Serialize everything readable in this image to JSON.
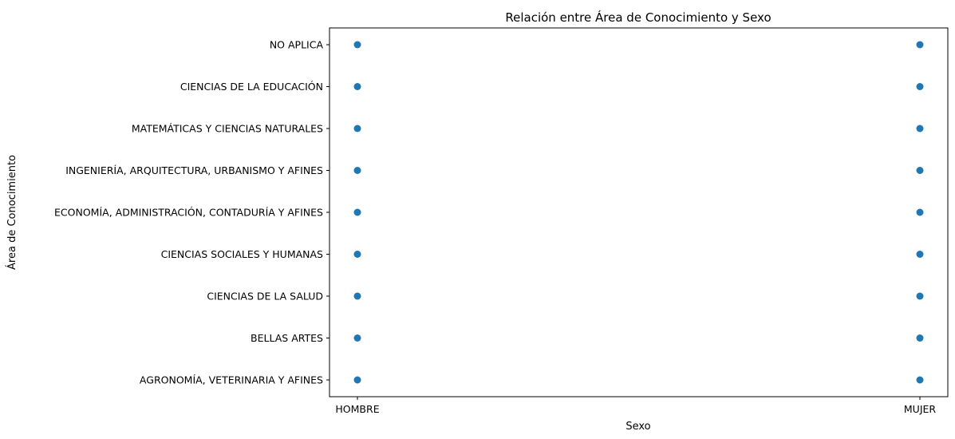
{
  "chart_data": {
    "type": "scatter",
    "title": "Relación entre Área de Conocimiento y Sexo",
    "xlabel": "Sexo",
    "ylabel": "Área de Conocimiento",
    "x_categories": [
      "HOMBRE",
      "MUJER"
    ],
    "y_categories": [
      "AGRONOMÍA, VETERINARIA Y AFINES",
      "BELLAS ARTES",
      "CIENCIAS DE LA SALUD",
      "CIENCIAS SOCIALES Y HUMANAS",
      "ECONOMÍA, ADMINISTRACIÓN, CONTADURÍA Y AFINES",
      "INGENIERÍA, ARQUITECTURA, URBANISMO Y AFINES",
      "MATEMÁTICAS Y CIENCIAS NATURALES",
      "CIENCIAS DE LA EDUCACIÓN",
      "NO APLICA"
    ],
    "points": [
      {
        "x": "HOMBRE",
        "y": "AGRONOMÍA, VETERINARIA Y AFINES"
      },
      {
        "x": "HOMBRE",
        "y": "BELLAS ARTES"
      },
      {
        "x": "HOMBRE",
        "y": "CIENCIAS DE LA SALUD"
      },
      {
        "x": "HOMBRE",
        "y": "CIENCIAS SOCIALES Y HUMANAS"
      },
      {
        "x": "HOMBRE",
        "y": "ECONOMÍA, ADMINISTRACIÓN, CONTADURÍA Y AFINES"
      },
      {
        "x": "HOMBRE",
        "y": "INGENIERÍA, ARQUITECTURA, URBANISMO Y AFINES"
      },
      {
        "x": "HOMBRE",
        "y": "MATEMÁTICAS Y CIENCIAS NATURALES"
      },
      {
        "x": "HOMBRE",
        "y": "CIENCIAS DE LA EDUCACIÓN"
      },
      {
        "x": "HOMBRE",
        "y": "NO APLICA"
      },
      {
        "x": "MUJER",
        "y": "AGRONOMÍA, VETERINARIA Y AFINES"
      },
      {
        "x": "MUJER",
        "y": "BELLAS ARTES"
      },
      {
        "x": "MUJER",
        "y": "CIENCIAS DE LA SALUD"
      },
      {
        "x": "MUJER",
        "y": "CIENCIAS SOCIALES Y HUMANAS"
      },
      {
        "x": "MUJER",
        "y": "ECONOMÍA, ADMINISTRACIÓN, CONTADURÍA Y AFINES"
      },
      {
        "x": "MUJER",
        "y": "INGENIERÍA, ARQUITECTURA, URBANISMO Y AFINES"
      },
      {
        "x": "MUJER",
        "y": "MATEMÁTICAS Y CIENCIAS NATURALES"
      },
      {
        "x": "MUJER",
        "y": "CIENCIAS DE LA EDUCACIÓN"
      },
      {
        "x": "MUJER",
        "y": "NO APLICA"
      }
    ],
    "marker_color": "#1f77b4",
    "grid": false,
    "legend": "none"
  }
}
